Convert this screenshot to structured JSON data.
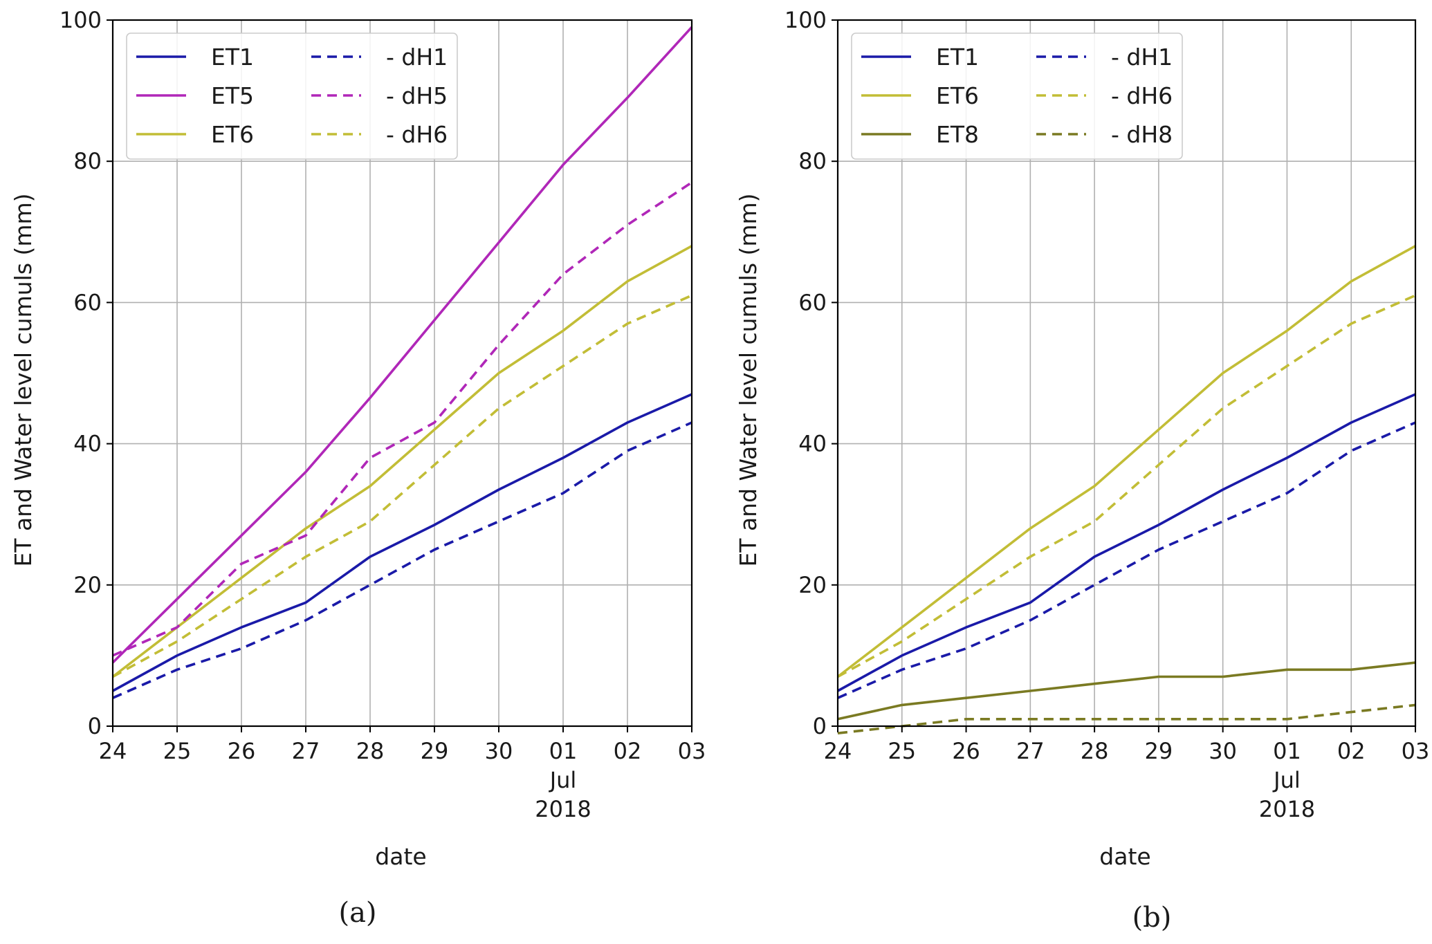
{
  "chart_data": [
    {
      "type": "line",
      "caption": "(a)",
      "xlabel": "date",
      "ylabel": "ET and Water level cumuls (mm)",
      "ylim": [
        0,
        100
      ],
      "yticks": [
        "0",
        "20",
        "40",
        "60",
        "80",
        "100"
      ],
      "yticks_values": [
        0,
        20,
        40,
        60,
        80,
        100
      ],
      "x": [
        0,
        1,
        2,
        3,
        4,
        5,
        6,
        7,
        8,
        9
      ],
      "xticks": [
        "24",
        "25",
        "26",
        "27",
        "28",
        "29",
        "30",
        "01",
        "02",
        "03"
      ],
      "xtick_sub": {
        "index": 7,
        "month": "Jul",
        "year": "2018"
      },
      "grid": true,
      "legend": {
        "position": "top-left",
        "columns": 2
      },
      "series": [
        {
          "name": "ET1",
          "color": "#1a1aa8",
          "dash": false,
          "values": [
            5,
            10,
            14,
            17.5,
            24,
            28.5,
            33.5,
            38,
            43,
            47
          ]
        },
        {
          "name": "ET5",
          "color": "#b027b8",
          "dash": false,
          "values": [
            9,
            18,
            27,
            36,
            46.5,
            57.5,
            68.5,
            79.5,
            89,
            99
          ]
        },
        {
          "name": "ET6",
          "color": "#c2bd36",
          "dash": false,
          "values": [
            7,
            14,
            21,
            28,
            34,
            42,
            50,
            56,
            63,
            68
          ]
        },
        {
          "name": "- dH1",
          "color": "#1a1aa8",
          "dash": true,
          "values": [
            4,
            8,
            11,
            15,
            20,
            25,
            29,
            33,
            39,
            43
          ]
        },
        {
          "name": "- dH5",
          "color": "#b027b8",
          "dash": true,
          "values": [
            10,
            14,
            23,
            27,
            38,
            43,
            54,
            64,
            71,
            77
          ]
        },
        {
          "name": "- dH6",
          "color": "#c2bd36",
          "dash": true,
          "values": [
            7,
            12,
            18,
            24,
            29,
            37,
            45,
            51,
            57,
            61
          ]
        }
      ]
    },
    {
      "type": "line",
      "caption": "(b)",
      "xlabel": "date",
      "ylabel": "ET and Water level cumuls (mm)",
      "ylim": [
        0,
        100
      ],
      "yticks": [
        "0",
        "20",
        "40",
        "60",
        "80",
        "100"
      ],
      "yticks_values": [
        0,
        20,
        40,
        60,
        80,
        100
      ],
      "x": [
        0,
        1,
        2,
        3,
        4,
        5,
        6,
        7,
        8,
        9
      ],
      "xticks": [
        "24",
        "25",
        "26",
        "27",
        "28",
        "29",
        "30",
        "01",
        "02",
        "03"
      ],
      "xtick_sub": {
        "index": 7,
        "month": "Jul",
        "year": "2018"
      },
      "grid": true,
      "legend": {
        "position": "top-left",
        "columns": 2
      },
      "series": [
        {
          "name": "ET1",
          "color": "#1a1aa8",
          "dash": false,
          "values": [
            5,
            10,
            14,
            17.5,
            24,
            28.5,
            33.5,
            38,
            43,
            47
          ]
        },
        {
          "name": "ET6",
          "color": "#c2bd36",
          "dash": false,
          "values": [
            7,
            14,
            21,
            28,
            34,
            42,
            50,
            56,
            63,
            68
          ]
        },
        {
          "name": "ET8",
          "color": "#7a7a22",
          "dash": false,
          "values": [
            1,
            3,
            4,
            5,
            6,
            7,
            7,
            8,
            8,
            9
          ]
        },
        {
          "name": "- dH1",
          "color": "#1a1aa8",
          "dash": true,
          "values": [
            4,
            8,
            11,
            15,
            20,
            25,
            29,
            33,
            39,
            43
          ]
        },
        {
          "name": "- dH6",
          "color": "#c2bd36",
          "dash": true,
          "values": [
            7,
            12,
            18,
            24,
            29,
            37,
            45,
            51,
            57,
            61
          ]
        },
        {
          "name": "- dH8",
          "color": "#7a7a22",
          "dash": true,
          "values": [
            -1,
            0,
            1,
            1,
            1,
            1,
            1,
            1,
            2,
            3
          ]
        }
      ]
    }
  ]
}
